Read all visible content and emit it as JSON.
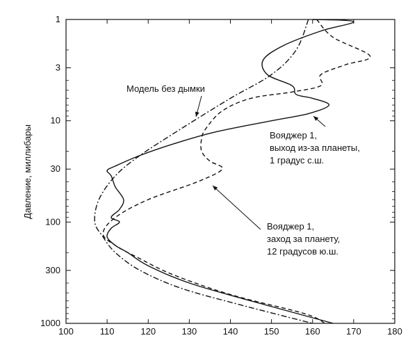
{
  "chart_data": {
    "type": "line",
    "title": "",
    "xlabel": "",
    "ylabel": "Давление, миллибары",
    "xlim": [
      100,
      180
    ],
    "ylim": [
      1,
      1000
    ],
    "y_scale": "log",
    "y_inverted": true,
    "grid": false,
    "x_ticks": [
      "100",
      "110",
      "120",
      "130",
      "140",
      "150",
      "160",
      "170",
      "180"
    ],
    "y_ticks": [
      "1",
      "3",
      "10",
      "30",
      "100",
      "300",
      "1000"
    ],
    "series": [
      {
        "name": "Модель без дымки",
        "style": "dash-dot",
        "points": [
          [
            159,
            1
          ],
          [
            156,
            2
          ],
          [
            150,
            3.5
          ],
          [
            140,
            6
          ],
          [
            128,
            12
          ],
          [
            118,
            22
          ],
          [
            112,
            35
          ],
          [
            108,
            60
          ],
          [
            107,
            100
          ],
          [
            109,
            140
          ],
          [
            112,
            200
          ],
          [
            118,
            300
          ],
          [
            128,
            450
          ],
          [
            142,
            650
          ],
          [
            160,
            1000
          ]
        ]
      },
      {
        "name": "Вояджер 1, выход из-за планеты, 1 градус с.ш.",
        "style": "solid",
        "points": [
          [
            160,
            1
          ],
          [
            170,
            1.05
          ],
          [
            162,
            1.3
          ],
          [
            153,
            1.8
          ],
          [
            148,
            2.5
          ],
          [
            149,
            3.5
          ],
          [
            155,
            4.5
          ],
          [
            156,
            5.5
          ],
          [
            160,
            6
          ],
          [
            164,
            7
          ],
          [
            159,
            8.5
          ],
          [
            150,
            10
          ],
          [
            136,
            13
          ],
          [
            126,
            17
          ],
          [
            118,
            22
          ],
          [
            112,
            28
          ],
          [
            110,
            31
          ],
          [
            111,
            35
          ],
          [
            112,
            45
          ],
          [
            114,
            60
          ],
          [
            113,
            75
          ],
          [
            111,
            90
          ],
          [
            113,
            100
          ],
          [
            111,
            115
          ],
          [
            110,
            140
          ],
          [
            112,
            170
          ],
          [
            115,
            200
          ],
          [
            120,
            270
          ],
          [
            130,
            400
          ],
          [
            145,
            600
          ],
          [
            165,
            1000
          ]
        ]
      },
      {
        "name": "Вояджер 1, заход за планету, 12 градусов ю.ш.",
        "style": "dashed",
        "points": [
          [
            161,
            1
          ],
          [
            165,
            1.5
          ],
          [
            174,
            2.3
          ],
          [
            168,
            2.8
          ],
          [
            162,
            3.5
          ],
          [
            162,
            4.5
          ],
          [
            155,
            5.2
          ],
          [
            145,
            6
          ],
          [
            138,
            8
          ],
          [
            134,
            12
          ],
          [
            133,
            15
          ],
          [
            133,
            20
          ],
          [
            135,
            25
          ],
          [
            138,
            30
          ],
          [
            132,
            40
          ],
          [
            120,
            60
          ],
          [
            112,
            90
          ],
          [
            109,
            130
          ],
          [
            112,
            170
          ],
          [
            118,
            230
          ],
          [
            126,
            330
          ],
          [
            140,
            520
          ],
          [
            158,
            800
          ],
          [
            163,
            1000
          ]
        ]
      }
    ],
    "annotations": [
      {
        "lines": [
          "Модель без дымки"
        ]
      },
      {
        "lines": [
          "Вояджер 1,",
          "выход из-за планеты,",
          "1 градус с.ш."
        ]
      },
      {
        "lines": [
          "Вояджер 1,",
          "заход за планету,",
          "12 градусов ю.ш."
        ]
      }
    ]
  }
}
